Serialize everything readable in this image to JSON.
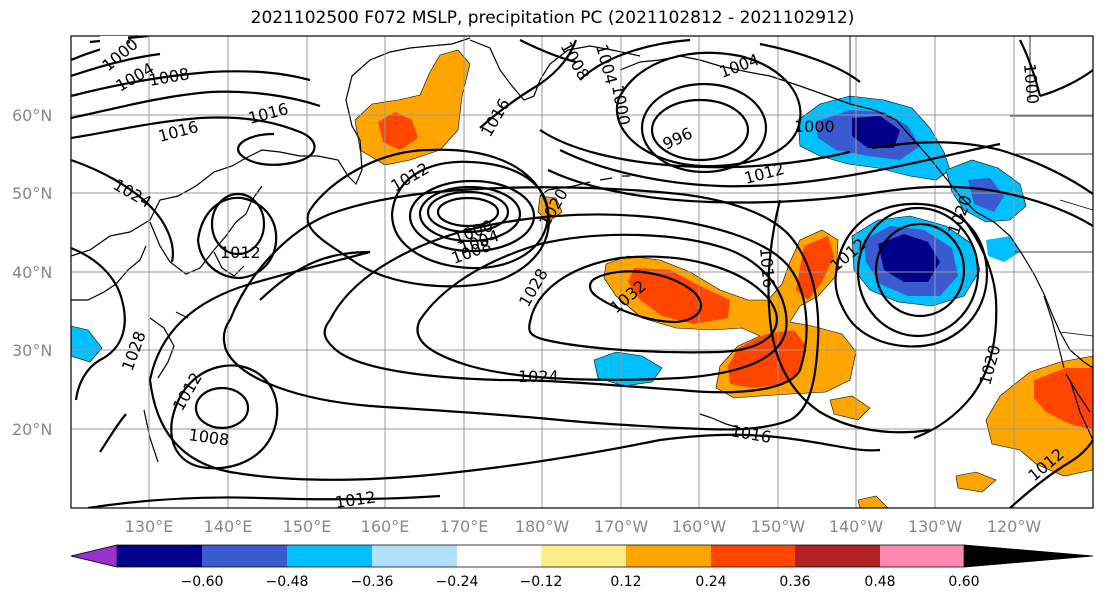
{
  "title": "2021102500 F072 MSLP, precipitation PC (2021102812 - 2021102912)",
  "lat_labels": [
    "60°N",
    "50°N",
    "40°N",
    "30°N",
    "20°N"
  ],
  "lon_labels": [
    "130°E",
    "140°E",
    "150°E",
    "160°E",
    "170°E",
    "180°W",
    "170°W",
    "160°W",
    "150°W",
    "140°W",
    "130°W",
    "120°W"
  ],
  "colorbar": {
    "ticks": [
      "−0.60",
      "−0.48",
      "−0.36",
      "−0.24",
      "−0.12",
      "0.12",
      "0.24",
      "0.36",
      "0.48",
      "0.60"
    ],
    "colors": [
      "#9932cc",
      "#00008b",
      "#3a5bcf",
      "#00bfff",
      "#b0e2ff",
      "#ffffff",
      "#ffec8b",
      "#ffa500",
      "#ff4500",
      "#b22222",
      "#ff88b0"
    ]
  },
  "isobar_labels": {
    "l1000a": "1000",
    "l1004a": "1004",
    "l1008a": "1008",
    "l1016a": "1016",
    "l1016b": "1016",
    "l1024a": "1024",
    "l1012a": "1012",
    "l1028a": "1028",
    "l1020a": "1020",
    "l1012b": "1012",
    "l1008b": "1008",
    "l1000b": "1000",
    "l1004b": "1004",
    "l1016c": "1016",
    "l996": "996",
    "l1000c": "1000",
    "l1000d": "1000",
    "l1012c": "1012",
    "l1020b": "1020",
    "l1016d": "1016",
    "l1032": "1032",
    "l1028b": "1028",
    "l1024b": "1024",
    "l1016e": "1016",
    "l1012d": "1012",
    "l1012e": "1012",
    "l1008c": "1008",
    "l1020c": "1020",
    "l1012f": "1012",
    "l1020d": "1020",
    "l1012g": "1012",
    "l1024c": "1024",
    "l1008d": "1008",
    "l1004c": "1004",
    "l1000e": "1000",
    "l1012h": "1012"
  },
  "colors": {
    "frame": "#000000",
    "grid": "#999999",
    "contour": "#000000"
  }
}
